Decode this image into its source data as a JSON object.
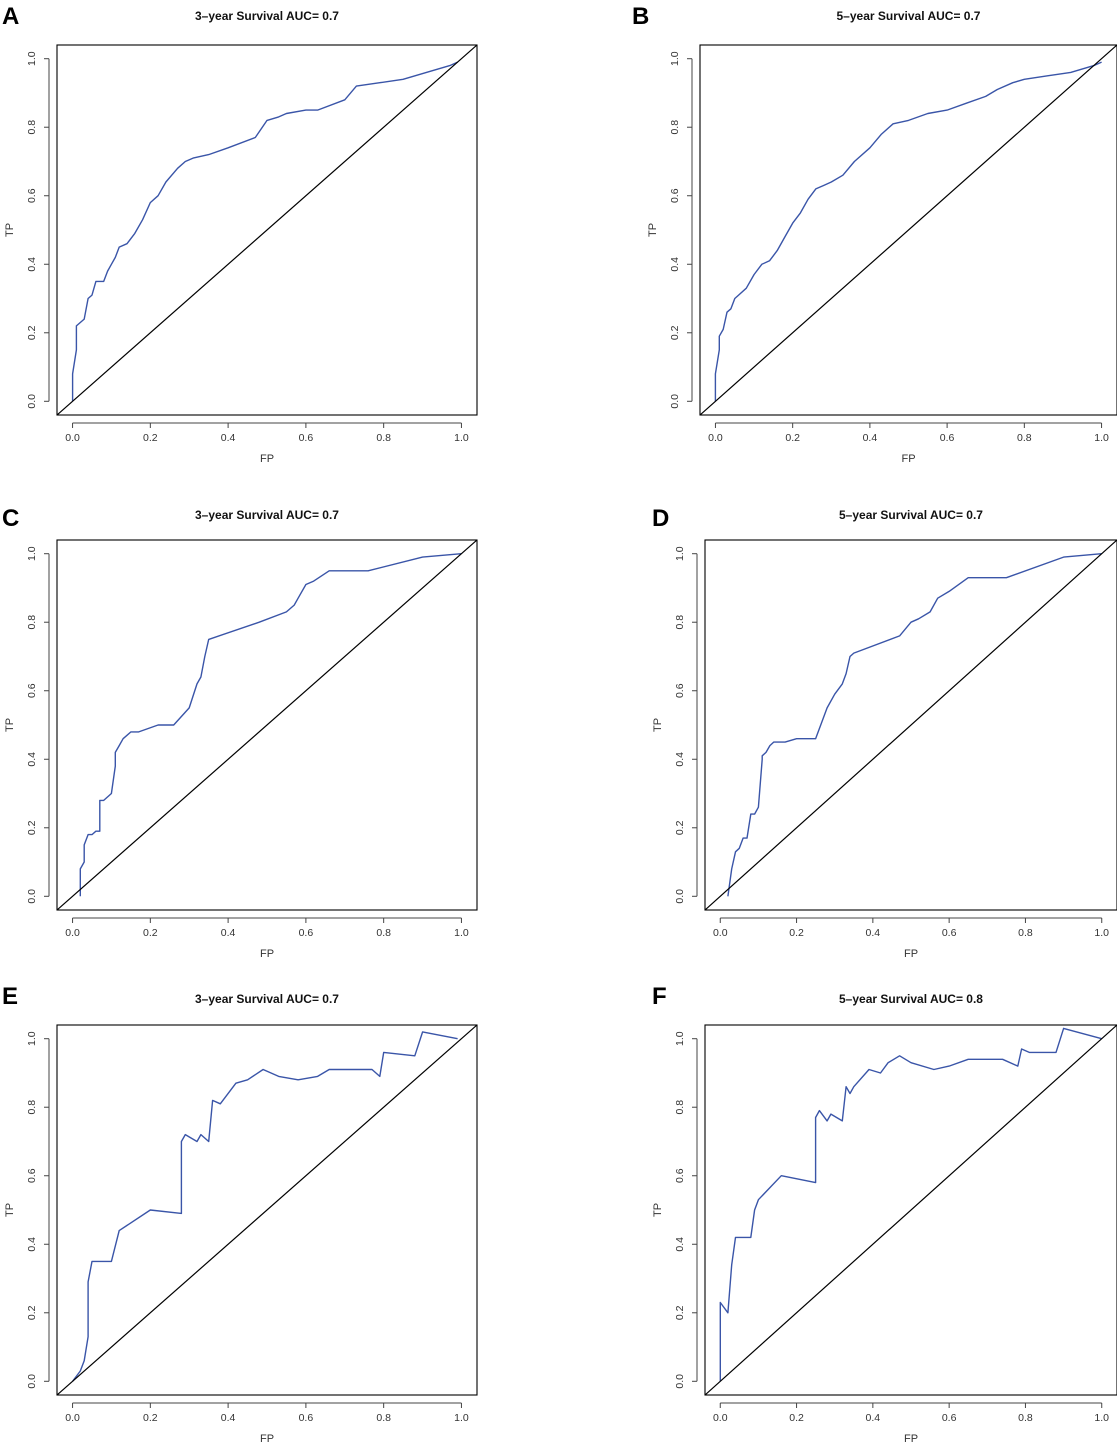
{
  "figure": {
    "description_labels": [
      "A",
      "B",
      "C",
      "D",
      "E",
      "F"
    ]
  },
  "chart_data": [
    {
      "panel": "A",
      "type": "line",
      "title": "3–year Survival AUC= 0.7",
      "xlabel": "FP",
      "ylabel": "TP",
      "xlim": [
        -0.04,
        1.04
      ],
      "ylim": [
        -0.04,
        1.04
      ],
      "xticks": [
        0.0,
        0.2,
        0.4,
        0.6,
        0.8,
        1.0
      ],
      "yticks": [
        0.0,
        0.2,
        0.4,
        0.6,
        0.8,
        1.0
      ],
      "tick_labels": [
        "0.0",
        "0.2",
        "0.4",
        "0.6",
        "0.8",
        "1.0"
      ],
      "series": [
        {
          "name": "ROC",
          "color": "#3a55a8",
          "x": [
            0.0,
            0.0,
            0.01,
            0.01,
            0.02,
            0.03,
            0.04,
            0.05,
            0.06,
            0.08,
            0.09,
            0.1,
            0.11,
            0.12,
            0.14,
            0.16,
            0.18,
            0.2,
            0.22,
            0.24,
            0.27,
            0.29,
            0.31,
            0.35,
            0.4,
            0.47,
            0.5,
            0.53,
            0.55,
            0.6,
            0.63,
            0.7,
            0.73,
            0.79,
            0.85,
            0.91,
            0.97,
            0.99
          ],
          "y": [
            0.0,
            0.08,
            0.15,
            0.22,
            0.23,
            0.24,
            0.3,
            0.31,
            0.35,
            0.35,
            0.38,
            0.4,
            0.42,
            0.45,
            0.46,
            0.49,
            0.53,
            0.58,
            0.6,
            0.64,
            0.68,
            0.7,
            0.71,
            0.72,
            0.74,
            0.77,
            0.82,
            0.83,
            0.84,
            0.85,
            0.85,
            0.88,
            0.92,
            0.93,
            0.94,
            0.96,
            0.98,
            0.99
          ]
        },
        {
          "name": "Reference",
          "color": "#000000",
          "x": [
            -0.04,
            1.04
          ],
          "y": [
            -0.04,
            1.04
          ]
        }
      ]
    },
    {
      "panel": "B",
      "type": "line",
      "title": "5–year Survival AUC= 0.7",
      "xlabel": "FP",
      "ylabel": "TP",
      "xlim": [
        -0.04,
        1.04
      ],
      "ylim": [
        -0.04,
        1.04
      ],
      "xticks": [
        0.0,
        0.2,
        0.4,
        0.6,
        0.8,
        1.0
      ],
      "yticks": [
        0.0,
        0.2,
        0.4,
        0.6,
        0.8,
        1.0
      ],
      "tick_labels": [
        "0.0",
        "0.2",
        "0.4",
        "0.6",
        "0.8",
        "1.0"
      ],
      "series": [
        {
          "name": "ROC",
          "color": "#3a55a8",
          "x": [
            0.0,
            0.0,
            0.01,
            0.01,
            0.02,
            0.03,
            0.04,
            0.05,
            0.06,
            0.08,
            0.1,
            0.12,
            0.14,
            0.16,
            0.18,
            0.2,
            0.22,
            0.24,
            0.26,
            0.28,
            0.3,
            0.33,
            0.36,
            0.4,
            0.43,
            0.46,
            0.5,
            0.55,
            0.6,
            0.65,
            0.7,
            0.73,
            0.77,
            0.8,
            0.86,
            0.92,
            0.98,
            1.0
          ],
          "y": [
            0.0,
            0.08,
            0.15,
            0.19,
            0.21,
            0.26,
            0.27,
            0.3,
            0.31,
            0.33,
            0.37,
            0.4,
            0.41,
            0.44,
            0.48,
            0.52,
            0.55,
            0.59,
            0.62,
            0.63,
            0.64,
            0.66,
            0.7,
            0.74,
            0.78,
            0.81,
            0.82,
            0.84,
            0.85,
            0.87,
            0.89,
            0.91,
            0.93,
            0.94,
            0.95,
            0.96,
            0.98,
            0.99
          ]
        },
        {
          "name": "Reference",
          "color": "#000000",
          "x": [
            -0.04,
            1.04
          ],
          "y": [
            -0.04,
            1.04
          ]
        }
      ]
    },
    {
      "panel": "C",
      "type": "line",
      "title": "3–year Survival AUC= 0.7",
      "xlabel": "FP",
      "ylabel": "TP",
      "xlim": [
        -0.04,
        1.04
      ],
      "ylim": [
        -0.04,
        1.04
      ],
      "xticks": [
        0.0,
        0.2,
        0.4,
        0.6,
        0.8,
        1.0
      ],
      "yticks": [
        0.0,
        0.2,
        0.4,
        0.6,
        0.8,
        1.0
      ],
      "tick_labels": [
        "0.0",
        "0.2",
        "0.4",
        "0.6",
        "0.8",
        "1.0"
      ],
      "series": [
        {
          "name": "ROC",
          "color": "#3a55a8",
          "x": [
            0.02,
            0.02,
            0.03,
            0.03,
            0.04,
            0.05,
            0.06,
            0.07,
            0.07,
            0.08,
            0.1,
            0.11,
            0.11,
            0.12,
            0.13,
            0.15,
            0.17,
            0.22,
            0.26,
            0.3,
            0.32,
            0.33,
            0.34,
            0.35,
            0.48,
            0.55,
            0.57,
            0.58,
            0.6,
            0.62,
            0.66,
            0.76,
            0.9,
            1.0
          ],
          "y": [
            0.0,
            0.08,
            0.1,
            0.15,
            0.18,
            0.18,
            0.19,
            0.19,
            0.28,
            0.28,
            0.3,
            0.38,
            0.42,
            0.44,
            0.46,
            0.48,
            0.48,
            0.5,
            0.5,
            0.55,
            0.62,
            0.64,
            0.7,
            0.75,
            0.8,
            0.83,
            0.85,
            0.87,
            0.91,
            0.92,
            0.95,
            0.95,
            0.99,
            1.0
          ]
        },
        {
          "name": "Reference",
          "color": "#000000",
          "x": [
            -0.04,
            1.04
          ],
          "y": [
            -0.04,
            1.04
          ]
        }
      ]
    },
    {
      "panel": "D",
      "type": "line",
      "title": "5–year Survival AUC= 0.7",
      "xlabel": "FP",
      "ylabel": "TP",
      "xlim": [
        -0.04,
        1.04
      ],
      "ylim": [
        -0.04,
        1.04
      ],
      "xticks": [
        0.0,
        0.2,
        0.4,
        0.6,
        0.8,
        1.0
      ],
      "yticks": [
        0.0,
        0.2,
        0.4,
        0.6,
        0.8,
        1.0
      ],
      "tick_labels": [
        "0.0",
        "0.2",
        "0.4",
        "0.6",
        "0.8",
        "1.0"
      ],
      "series": [
        {
          "name": "ROC",
          "color": "#3a55a8",
          "x": [
            0.02,
            0.03,
            0.04,
            0.05,
            0.06,
            0.07,
            0.08,
            0.09,
            0.1,
            0.11,
            0.11,
            0.12,
            0.13,
            0.14,
            0.15,
            0.17,
            0.2,
            0.25,
            0.28,
            0.3,
            0.32,
            0.33,
            0.34,
            0.35,
            0.47,
            0.5,
            0.52,
            0.55,
            0.57,
            0.6,
            0.65,
            0.75,
            0.9,
            1.0
          ],
          "y": [
            0.0,
            0.08,
            0.13,
            0.14,
            0.17,
            0.17,
            0.24,
            0.24,
            0.26,
            0.4,
            0.41,
            0.42,
            0.44,
            0.45,
            0.45,
            0.45,
            0.46,
            0.46,
            0.55,
            0.59,
            0.62,
            0.65,
            0.7,
            0.71,
            0.76,
            0.8,
            0.81,
            0.83,
            0.87,
            0.89,
            0.93,
            0.93,
            0.99,
            1.0
          ]
        },
        {
          "name": "Reference",
          "color": "#000000",
          "x": [
            -0.04,
            1.04
          ],
          "y": [
            -0.04,
            1.04
          ]
        }
      ]
    },
    {
      "panel": "E",
      "type": "line",
      "title": "3–year Survival AUC= 0.7",
      "xlabel": "FP",
      "ylabel": "TP",
      "xlim": [
        -0.04,
        1.04
      ],
      "ylim": [
        -0.04,
        1.04
      ],
      "xticks": [
        0.0,
        0.2,
        0.4,
        0.6,
        0.8,
        1.0
      ],
      "yticks": [
        0.0,
        0.2,
        0.4,
        0.6,
        0.8,
        1.0
      ],
      "tick_labels": [
        "0.0",
        "0.2",
        "0.4",
        "0.6",
        "0.8",
        "1.0"
      ],
      "series": [
        {
          "name": "ROC",
          "color": "#3a55a8",
          "x": [
            0.0,
            0.02,
            0.03,
            0.04,
            0.04,
            0.05,
            0.06,
            0.1,
            0.12,
            0.2,
            0.28,
            0.28,
            0.29,
            0.32,
            0.33,
            0.35,
            0.36,
            0.38,
            0.42,
            0.45,
            0.49,
            0.53,
            0.58,
            0.63,
            0.66,
            0.77,
            0.79,
            0.8,
            0.88,
            0.9,
            0.99
          ],
          "y": [
            0.0,
            0.03,
            0.06,
            0.13,
            0.29,
            0.35,
            0.35,
            0.35,
            0.44,
            0.5,
            0.49,
            0.7,
            0.72,
            0.7,
            0.72,
            0.7,
            0.82,
            0.81,
            0.87,
            0.88,
            0.91,
            0.89,
            0.88,
            0.89,
            0.91,
            0.91,
            0.89,
            0.96,
            0.95,
            1.02,
            1.0
          ]
        },
        {
          "name": "Reference",
          "color": "#000000",
          "x": [
            -0.04,
            1.04
          ],
          "y": [
            -0.04,
            1.04
          ]
        }
      ]
    },
    {
      "panel": "F",
      "type": "line",
      "title": "5–year Survival AUC= 0.8",
      "xlabel": "FP",
      "ylabel": "TP",
      "xlim": [
        -0.04,
        1.04
      ],
      "ylim": [
        -0.04,
        1.04
      ],
      "xticks": [
        0.0,
        0.2,
        0.4,
        0.6,
        0.8,
        1.0
      ],
      "yticks": [
        0.0,
        0.2,
        0.4,
        0.6,
        0.8,
        1.0
      ],
      "tick_labels": [
        "0.0",
        "0.2",
        "0.4",
        "0.6",
        "0.8",
        "1.0"
      ],
      "series": [
        {
          "name": "ROC",
          "color": "#3a55a8",
          "x": [
            0.0,
            0.0,
            0.02,
            0.03,
            0.04,
            0.08,
            0.09,
            0.1,
            0.16,
            0.25,
            0.25,
            0.26,
            0.28,
            0.29,
            0.32,
            0.33,
            0.34,
            0.35,
            0.39,
            0.42,
            0.44,
            0.47,
            0.5,
            0.56,
            0.6,
            0.65,
            0.74,
            0.78,
            0.79,
            0.81,
            0.84,
            0.88,
            0.9,
            1.0
          ],
          "y": [
            0.0,
            0.23,
            0.2,
            0.34,
            0.42,
            0.42,
            0.5,
            0.53,
            0.6,
            0.58,
            0.77,
            0.79,
            0.76,
            0.78,
            0.76,
            0.86,
            0.84,
            0.86,
            0.91,
            0.9,
            0.93,
            0.95,
            0.93,
            0.91,
            0.92,
            0.94,
            0.94,
            0.92,
            0.97,
            0.96,
            0.96,
            0.96,
            1.03,
            1.0
          ]
        },
        {
          "name": "Reference",
          "color": "#000000",
          "x": [
            -0.04,
            1.04
          ],
          "y": [
            -0.04,
            1.04
          ]
        }
      ]
    }
  ]
}
